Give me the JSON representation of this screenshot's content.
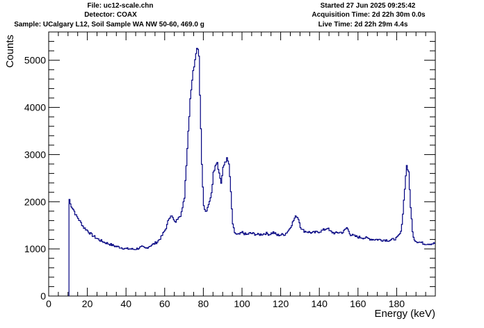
{
  "header": {
    "file": "File: uc12-scale.chn",
    "detector": "Detector: COAX",
    "sample": "Sample: UCalgary L12, Soil Sample WA NW 50-60, 469.0 g",
    "started": "Started 27 Jun 2025 09:25:42",
    "acquisition": "Acquisition Time: 2d 22h 30m 0.0s",
    "live": "Live Time: 2d 22h 29m 4.4s"
  },
  "colors": {
    "series": "#000080",
    "axis": "#000000"
  },
  "chart_data": {
    "type": "line",
    "title": "",
    "xlabel": "Energy (keV)",
    "ylabel": "Counts",
    "xlim": [
      0,
      200
    ],
    "ylim": [
      0,
      5600
    ],
    "x_ticks": [
      0,
      20,
      40,
      60,
      80,
      100,
      120,
      140,
      160,
      180
    ],
    "y_ticks": [
      0,
      1000,
      2000,
      3000,
      4000,
      5000
    ],
    "grid": false,
    "legend": "none",
    "series": [
      {
        "name": "",
        "x": [
          10.5,
          11,
          12,
          13,
          14,
          15,
          16,
          17,
          18,
          19,
          20,
          22,
          24,
          26,
          28,
          30,
          32,
          34,
          36,
          38,
          40,
          42,
          44,
          46,
          48,
          50,
          52,
          54,
          56,
          58,
          60,
          61,
          62,
          63,
          64,
          65,
          66,
          67,
          68,
          69,
          70,
          71,
          72,
          73,
          74,
          75,
          76,
          77,
          77.5,
          78,
          79,
          80,
          81,
          82,
          83,
          84,
          85,
          86,
          87,
          88,
          89,
          90,
          91,
          92,
          93,
          94,
          95,
          96,
          97,
          98,
          99,
          100,
          102,
          104,
          106,
          108,
          110,
          112,
          114,
          116,
          118,
          120,
          122,
          124,
          126,
          127,
          128,
          129,
          130,
          131,
          132,
          134,
          136,
          138,
          140,
          142,
          143,
          144,
          145,
          146,
          148,
          150,
          152,
          153,
          154,
          155,
          156,
          158,
          160,
          162,
          164,
          166,
          168,
          170,
          172,
          174,
          176,
          178,
          180,
          182,
          183,
          184,
          185,
          186,
          187,
          188,
          189,
          190,
          192,
          194,
          196,
          198,
          200
        ],
        "y": [
          2050,
          1950,
          1880,
          1800,
          1700,
          1650,
          1580,
          1520,
          1450,
          1420,
          1380,
          1300,
          1240,
          1190,
          1150,
          1120,
          1090,
          1060,
          1040,
          1020,
          1000,
          1000,
          990,
          1010,
          1040,
          1010,
          1060,
          1100,
          1150,
          1250,
          1400,
          1500,
          1650,
          1720,
          1650,
          1560,
          1600,
          1700,
          1720,
          1850,
          2100,
          2800,
          3500,
          4200,
          4600,
          4900,
          5200,
          5280,
          5100,
          4300,
          2800,
          1900,
          1780,
          1850,
          2000,
          2200,
          2600,
          2800,
          2850,
          2600,
          2400,
          2700,
          2850,
          2900,
          2800,
          2200,
          1500,
          1350,
          1300,
          1300,
          1320,
          1350,
          1300,
          1330,
          1320,
          1300,
          1310,
          1330,
          1310,
          1350,
          1290,
          1300,
          1310,
          1400,
          1560,
          1650,
          1700,
          1640,
          1480,
          1400,
          1380,
          1360,
          1340,
          1350,
          1370,
          1400,
          1420,
          1450,
          1380,
          1360,
          1330,
          1350,
          1350,
          1400,
          1450,
          1380,
          1300,
          1270,
          1250,
          1240,
          1230,
          1210,
          1200,
          1200,
          1190,
          1190,
          1180,
          1200,
          1230,
          1350,
          1750,
          2300,
          2780,
          2600,
          1900,
          1350,
          1200,
          1160,
          1140,
          1110,
          1110,
          1110,
          1120
        ]
      }
    ]
  }
}
